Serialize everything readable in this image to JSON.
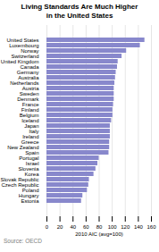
{
  "chart_data": {
    "type": "bar",
    "orientation": "horizontal",
    "title": "Living Standards Are Much Higher\nin the United States",
    "xlabel": "2010 AIC (avg=100)",
    "source": "Source: OECD",
    "categories": [
      "United States",
      "Luxembourg",
      "Norway",
      "Switzerland",
      "United Kingdom",
      "Canada",
      "Germany",
      "Australia",
      "Netherlands",
      "Austria",
      "Sweden",
      "Denmark",
      "France",
      "Finland",
      "Belgium",
      "Iceland",
      "Japan",
      "Italy",
      "Ireland",
      "Greece",
      "New Zealand",
      "Spain",
      "Portugal",
      "Israel",
      "Slovenia",
      "Korea",
      "Slovak Republic",
      "Czech Republic",
      "Poland",
      "Hungary",
      "Estonia"
    ],
    "values": [
      150,
      143,
      122,
      115,
      109,
      108,
      106,
      105,
      104,
      103,
      103,
      103,
      102,
      101,
      101,
      99,
      97,
      97,
      97,
      96,
      96,
      95,
      80,
      78,
      75,
      72,
      65,
      64,
      62,
      55,
      53
    ],
    "color": "#8888cc",
    "xlim": [
      0,
      160
    ],
    "xticks": [
      0,
      20,
      40,
      60,
      80,
      100,
      120,
      140,
      160
    ],
    "grid": true
  }
}
